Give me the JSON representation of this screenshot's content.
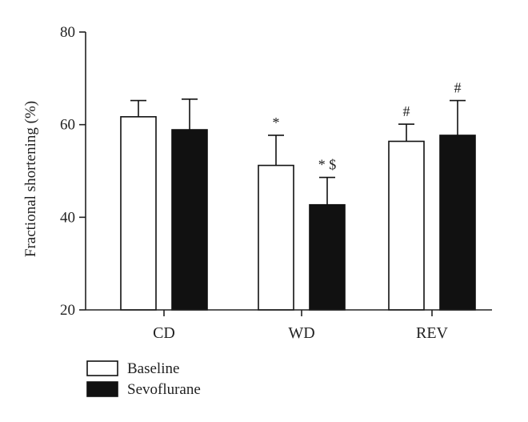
{
  "chart_data": {
    "type": "bar",
    "title": "",
    "xlabel": "",
    "ylabel": "Fractional shortening (%)",
    "ylim": [
      20,
      80
    ],
    "yticks": [
      20,
      40,
      60,
      80
    ],
    "categories": [
      "CD",
      "WD",
      "REV"
    ],
    "series": [
      {
        "name": "Baseline",
        "color": "#ffffff",
        "values": [
          61.7,
          51.2,
          56.4
        ],
        "errors": [
          3.5,
          6.5,
          3.7
        ],
        "annotations": [
          "",
          "*",
          "#"
        ]
      },
      {
        "name": "Sevoflurane",
        "color": "#111111",
        "values": [
          58.9,
          42.7,
          57.7
        ],
        "errors": [
          6.6,
          5.9,
          7.5
        ],
        "annotations": [
          "",
          "* $",
          "#"
        ]
      }
    ],
    "grid": false,
    "legend_position": "bottom-left"
  }
}
